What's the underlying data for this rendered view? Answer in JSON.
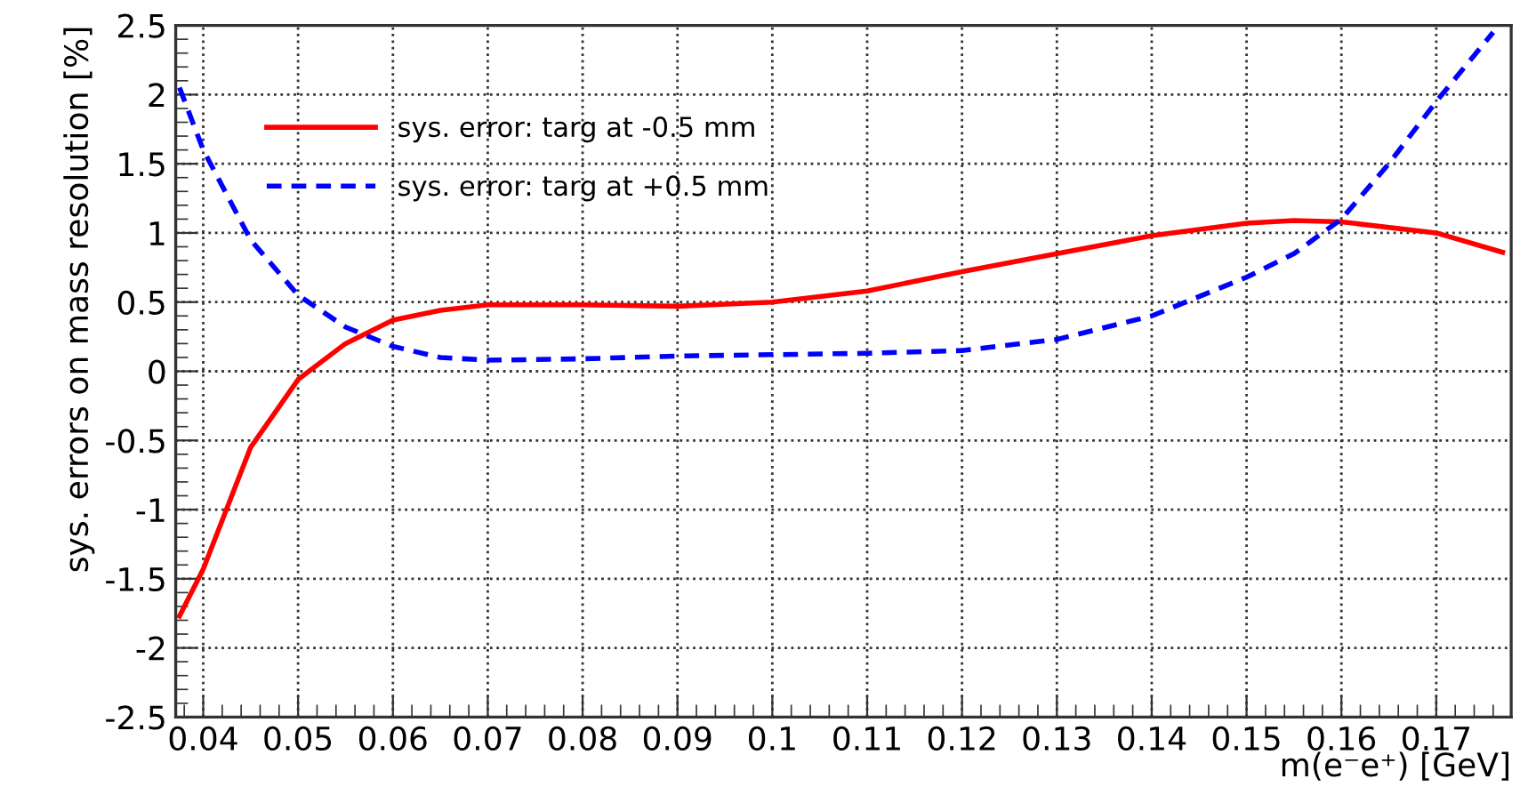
{
  "chart_data": {
    "type": "line",
    "xlabel": "m(e⁻e⁺) [GeV]",
    "ylabel": "sys. errors on mass resolution [%]",
    "xlim": [
      0.0371,
      0.1779
    ],
    "xticks": [
      0.04,
      0.05,
      0.06,
      0.07,
      0.08,
      0.09,
      0.1,
      0.11,
      0.12,
      0.13,
      0.14,
      0.15,
      0.16,
      0.17
    ],
    "ylim": [
      -2.5,
      2.5
    ],
    "yticks": [
      -2.5,
      -2,
      -1.5,
      -1,
      -0.5,
      0,
      0.5,
      1,
      1.5,
      2,
      2.5
    ],
    "grid": true,
    "legend": "top left",
    "series": [
      {
        "name": "sys. error: targ at -0.5 mm",
        "color": "#ff0000",
        "line_style": "solid",
        "x": [
          0.0375,
          0.04,
          0.045,
          0.05,
          0.055,
          0.06,
          0.065,
          0.07,
          0.08,
          0.09,
          0.1,
          0.11,
          0.12,
          0.13,
          0.14,
          0.15,
          0.155,
          0.16,
          0.17,
          0.177
        ],
        "values": [
          -1.77,
          -1.43,
          -0.55,
          -0.06,
          0.2,
          0.37,
          0.44,
          0.48,
          0.48,
          0.47,
          0.5,
          0.58,
          0.72,
          0.85,
          0.98,
          1.07,
          1.09,
          1.08,
          1.0,
          0.86
        ]
      },
      {
        "name": "sys. error: targ at +0.5 mm",
        "color": "#0000ff",
        "line_style": "dashed",
        "x": [
          0.0375,
          0.04,
          0.045,
          0.05,
          0.055,
          0.06,
          0.065,
          0.07,
          0.08,
          0.09,
          0.1,
          0.11,
          0.12,
          0.13,
          0.14,
          0.15,
          0.155,
          0.16,
          0.165,
          0.17,
          0.176
        ],
        "values": [
          2.05,
          1.6,
          0.95,
          0.55,
          0.32,
          0.18,
          0.1,
          0.08,
          0.09,
          0.11,
          0.12,
          0.13,
          0.15,
          0.23,
          0.4,
          0.68,
          0.85,
          1.1,
          1.5,
          1.95,
          2.45
        ]
      }
    ]
  }
}
